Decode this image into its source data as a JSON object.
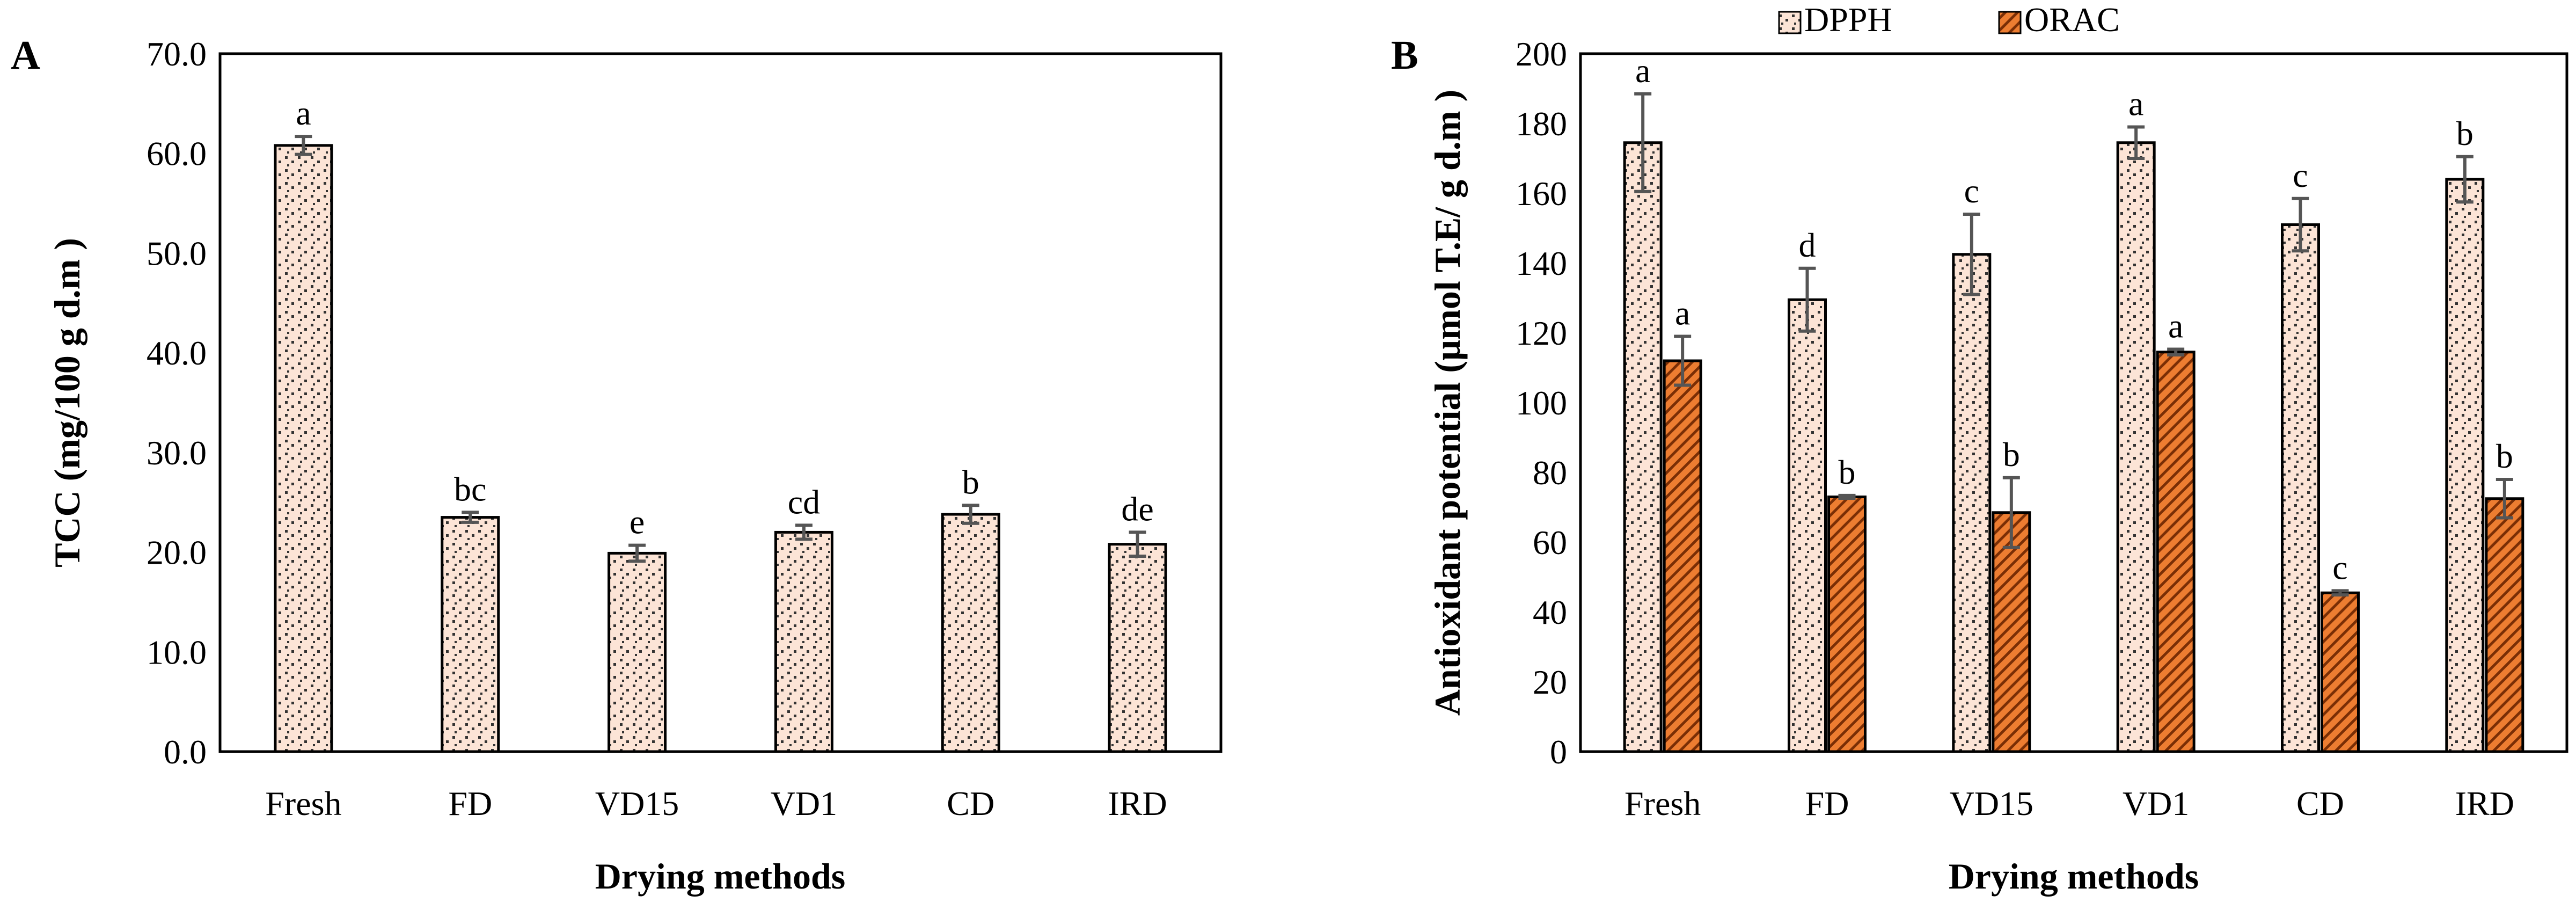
{
  "chart_data": [
    {
      "panel_label": "A",
      "type": "bar",
      "title": "",
      "xlabel": "Drying methods",
      "ylabel": "TCC (mg/100 g d.m )",
      "ylim": [
        0,
        70
      ],
      "yticks": [
        "0.0",
        "10.0",
        "20.0",
        "30.0",
        "40.0",
        "50.0",
        "60.0",
        "70.0"
      ],
      "categories": [
        "Fresh",
        "FD",
        "VD15",
        "VD1",
        "CD",
        "IRD"
      ],
      "series": [
        {
          "name": "TCC",
          "color": "#FCE4D6",
          "pattern": "dots",
          "values": [
            60.8,
            23.5,
            19.9,
            22.0,
            23.8,
            20.8
          ],
          "errors": [
            0.9,
            0.5,
            0.8,
            0.7,
            0.9,
            1.2
          ],
          "letters": [
            "a",
            "bc",
            "e",
            "cd",
            "b",
            "de"
          ]
        }
      ]
    },
    {
      "panel_label": "B",
      "type": "bar",
      "title": "",
      "xlabel": "Drying methods",
      "ylabel": "Antioxidant potential (µmol T.E/ g d.m )",
      "ylim": [
        0,
        200
      ],
      "yticks": [
        "0",
        "20",
        "40",
        "60",
        "80",
        "100",
        "120",
        "140",
        "160",
        "180",
        "200"
      ],
      "categories": [
        "Fresh",
        "FD",
        "VD15",
        "VD1",
        "CD",
        "IRD"
      ],
      "legend_position": "top",
      "series": [
        {
          "name": "DPPH",
          "color": "#FCE4D6",
          "pattern": "dots",
          "values": [
            174.5,
            129.5,
            142.5,
            174.5,
            151.0,
            164.0
          ],
          "errors": [
            14.0,
            9.0,
            11.5,
            4.5,
            7.5,
            6.5
          ],
          "letters": [
            "a",
            "d",
            "c",
            "a",
            "c",
            "b"
          ]
        },
        {
          "name": "ORAC",
          "color": "#ED7D31",
          "pattern": "stripes",
          "values": [
            112.0,
            73.0,
            68.5,
            114.5,
            45.5,
            72.5
          ],
          "errors": [
            7.0,
            0.4,
            10.0,
            0.8,
            0.6,
            5.5
          ],
          "letters": [
            "a",
            "b",
            "b",
            "a",
            "c",
            "b"
          ]
        }
      ]
    }
  ]
}
